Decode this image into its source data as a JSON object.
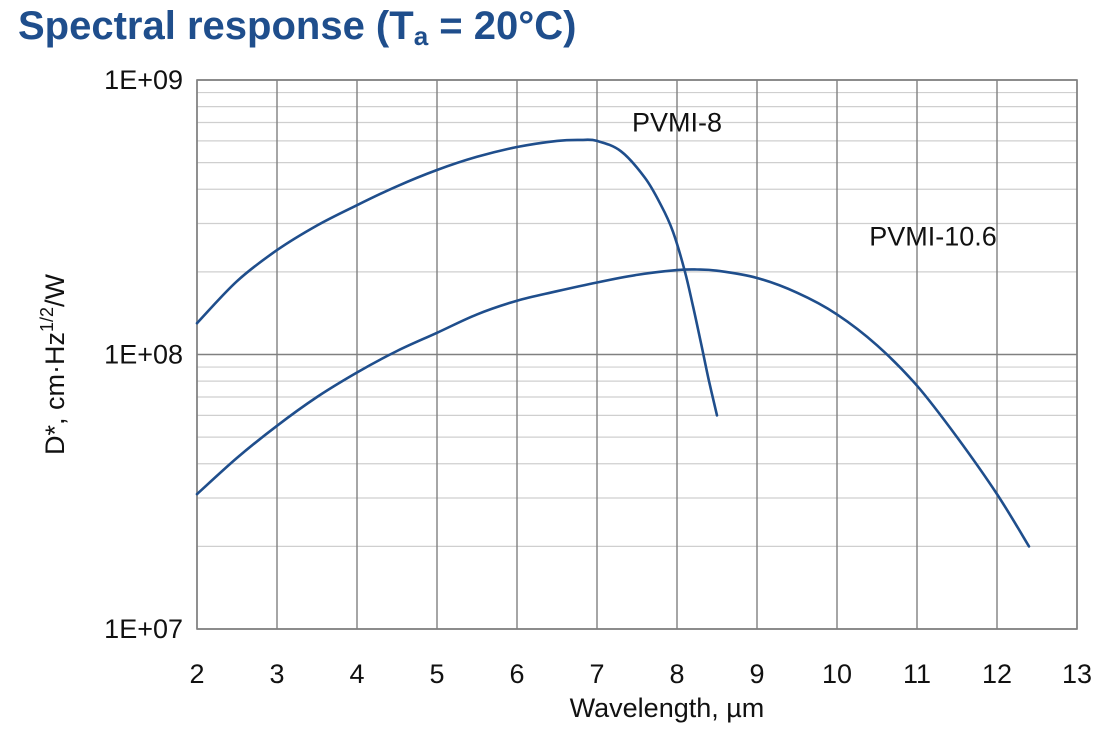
{
  "chart_data": {
    "type": "line",
    "title": "Spectral response (T",
    "title_sub": "a",
    "title_rest": " = 20°C)",
    "xlabel": "Wavelength, µm",
    "ylabel": "D*, cm·Hz",
    "ylabel_sup": "1/2",
    "ylabel_rest": "/W",
    "xlim": [
      2,
      13
    ],
    "ylim": [
      10000000,
      1000000000
    ],
    "yscale": "log",
    "grid": true,
    "x_ticks": [
      "2",
      "3",
      "4",
      "5",
      "6",
      "7",
      "8",
      "9",
      "10",
      "11",
      "12",
      "13"
    ],
    "y_ticks": [
      {
        "label": "1E+07",
        "value": 10000000
      },
      {
        "label": "1E+08",
        "value": 100000000
      },
      {
        "label": "1E+09",
        "value": 1000000000
      }
    ],
    "line_color": "#1f4e8c",
    "series": [
      {
        "name": "PVMI-8",
        "x": [
          2,
          2.5,
          3,
          3.5,
          4,
          4.5,
          5,
          5.5,
          6,
          6.5,
          6.8,
          7,
          7.3,
          7.6,
          7.8,
          7.95,
          8.1,
          8.2,
          8.3,
          8.4,
          8.5
        ],
        "y": [
          130000000,
          185000000,
          240000000,
          295000000,
          350000000,
          410000000,
          470000000,
          525000000,
          570000000,
          600000000,
          605000000,
          600000000,
          550000000,
          440000000,
          350000000,
          280000000,
          200000000,
          150000000,
          110000000,
          80000000,
          60000000
        ]
      },
      {
        "name": "PVMI-10.6",
        "x": [
          2,
          2.5,
          3,
          3.5,
          4,
          4.5,
          5,
          5.5,
          6,
          6.5,
          7,
          7.5,
          8,
          8.25,
          8.5,
          9,
          9.5,
          10,
          10.5,
          11,
          11.5,
          12,
          12.4
        ],
        "y": [
          31000000,
          42000000,
          55000000,
          70000000,
          86000000,
          103000000,
          120000000,
          140000000,
          157000000,
          170000000,
          183000000,
          195000000,
          203000000,
          204000000,
          202000000,
          190000000,
          168000000,
          140000000,
          108000000,
          77000000,
          50000000,
          31000000,
          20000000
        ]
      }
    ],
    "annotations": [
      {
        "text": "PVMI-8",
        "x": 8.0,
        "y": 650000000
      },
      {
        "text": "PVMI-10.6",
        "x": 11.2,
        "y": 250000000
      }
    ]
  }
}
